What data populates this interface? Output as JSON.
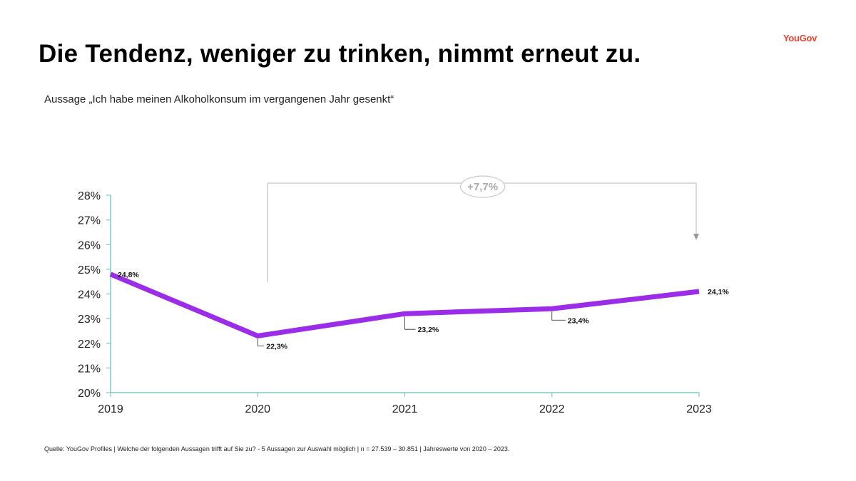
{
  "brand": {
    "logo_text": "YouGov",
    "logo_color": "#e8412c"
  },
  "slide": {
    "title": "Die Tendenz, weniger zu trinken, nimmt erneut zu.",
    "subtitle": "Aussage „Ich habe meinen Alkoholkonsum im vergangenen Jahr gesenkt“",
    "source": "Quelle: YouGov Profiles | Welche der folgenden Aussagen trifft auf Sie zu? -  5 Aussagen zur Auswahl möglich | n = 27.539 – 30.851 | Jahreswerte von 2020 – 2023."
  },
  "chart_data": {
    "type": "line",
    "x": [
      "2019",
      "2020",
      "2021",
      "2022",
      "2023"
    ],
    "series": [
      {
        "values": [
          24.8,
          22.3,
          23.2,
          23.4,
          24.1
        ],
        "color": "#9b2de8"
      }
    ],
    "data_labels": [
      "24,8%",
      "22,3%",
      "23,2%",
      "23,4%",
      "24,1%"
    ],
    "ylim": [
      20,
      28
    ],
    "yticks": [
      20,
      21,
      22,
      23,
      24,
      25,
      26,
      27,
      28
    ],
    "ytick_labels": [
      "20%",
      "21%",
      "22%",
      "23%",
      "24%",
      "25%",
      "26%",
      "27%",
      "28%"
    ],
    "xlabel": "",
    "ylabel": "",
    "grid": false,
    "annotation": {
      "text": "+7,7%",
      "from": "2020",
      "to": "2023"
    },
    "axis_color": "#7fc8c8"
  }
}
